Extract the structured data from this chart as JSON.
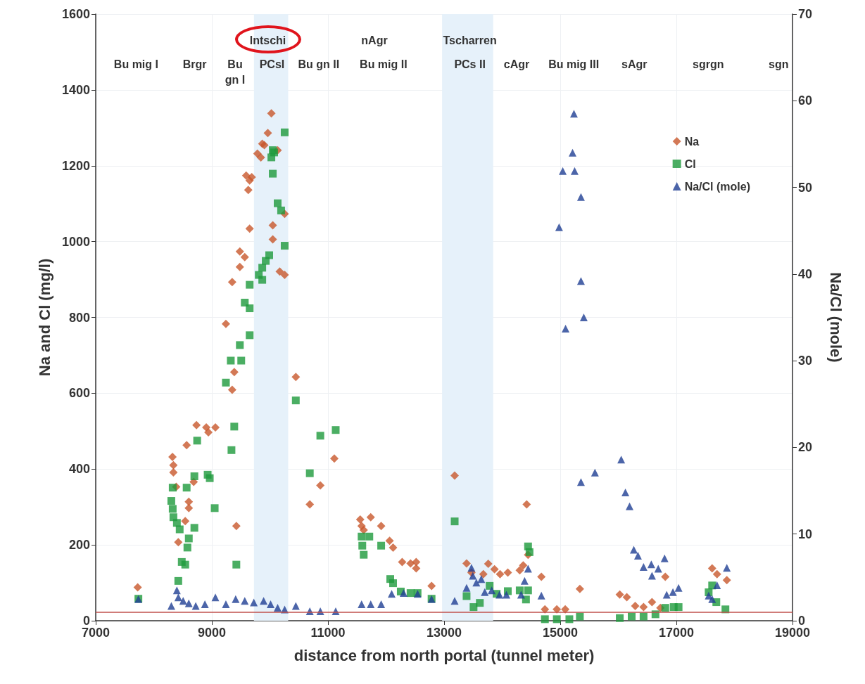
{
  "chart_data": {
    "type": "scatter",
    "xlabel": "distance from north portal (tunnel meter)",
    "ylabel": "Na and Cl (mg/l)",
    "y2label": "Na/Cl (mole)",
    "xlim": [
      7000,
      19000
    ],
    "xticks": [
      7000,
      9000,
      11000,
      13000,
      15000,
      17000,
      19000
    ],
    "ylim": [
      0,
      1600
    ],
    "yticks": [
      0,
      200,
      400,
      600,
      800,
      1000,
      1200,
      1400,
      1600
    ],
    "y2lim": [
      0,
      70
    ],
    "y2ticks": [
      0,
      10,
      20,
      30,
      40,
      50,
      60,
      70
    ],
    "grid": true,
    "legend": "top right",
    "series": [
      {
        "name": "Na",
        "color": "#c8572c",
        "marker": "diamond",
        "x": [
          7723,
          8322,
          8338,
          8338,
          8386,
          8566,
          8735,
          8904,
          8940,
          9061,
          8603,
          8603,
          8542,
          8422,
          8687,
          9242,
          9386,
          9350,
          9422,
          10446,
          10687,
          10868,
          11109,
          11555,
          11579,
          11615,
          11736,
          11916,
          12061,
          12121,
          12278,
          12422,
          12519,
          12519,
          12784,
          10025,
          9964,
          9868,
          9904,
          10133,
          9784,
          9844,
          9591,
          9687,
          9651,
          9627,
          9651,
          10049,
          10049,
          10254,
          9482,
          9567,
          9482,
          9350,
          10169,
          10254,
          13182,
          14422,
          13387,
          13471,
          13676,
          13760,
          13868,
          13964,
          14097,
          14302,
          14362,
          14446,
          14675,
          15338,
          14736,
          14941,
          15086,
          16025,
          16146,
          16291,
          16435,
          16580,
          16724,
          16809,
          17616,
          17700,
          17869
        ],
        "values": [
          88,
          432,
          410,
          391,
          353,
          463,
          516,
          510,
          497,
          510,
          314,
          297,
          263,
          207,
          366,
          783,
          656,
          609,
          250,
          643,
          307,
          357,
          428,
          267,
          250,
          239,
          273,
          250,
          211,
          193,
          155,
          151,
          155,
          138,
          92,
          1338,
          1286,
          1258,
          1254,
          1241,
          1232,
          1222,
          1174,
          1170,
          1161,
          1136,
          1034,
          1043,
          1006,
          1073,
          974,
          959,
          933,
          893,
          921,
          912,
          383,
          307,
          151,
          127,
          123,
          150,
          136,
          123,
          127,
          133,
          146,
          174,
          116,
          84,
          30,
          30,
          30,
          69,
          62,
          39,
          36,
          49,
          34,
          116,
          138,
          123,
          107
        ]
      },
      {
        "name": "Cl",
        "color": "#1e9a3c",
        "marker": "square",
        "x": [
          10254,
          10049,
          10025,
          10073,
          10049,
          10133,
          10193,
          10254,
          9988,
          9928,
          9868,
          9808,
          9868,
          9651,
          9567,
          9651,
          9651,
          9482,
          9326,
          9506,
          9242,
          9386,
          9338,
          9422,
          10446,
          10868,
          11133,
          10687,
          8747,
          8699,
          8928,
          8964,
          8326,
          8566,
          8302,
          8326,
          8338,
          8398,
          8446,
          8699,
          8603,
          8579,
          9049,
          8482,
          8542,
          8422,
          7735,
          11579,
          11591,
          11615,
          11712,
          11916,
          12073,
          12121,
          12254,
          12422,
          12543,
          12784,
          13182,
          14446,
          14471,
          13387,
          13507,
          13615,
          13784,
          13904,
          14097,
          14302,
          14446,
          14410,
          14736,
          14941,
          15157,
          15338,
          16025,
          16230,
          16435,
          16640,
          16809,
          16954,
          17038,
          17556,
          17616,
          17688,
          17845
        ],
        "values": [
          1288,
          1241,
          1222,
          1235,
          1179,
          1101,
          1082,
          989,
          964,
          949,
          931,
          912,
          899,
          886,
          839,
          824,
          753,
          727,
          686,
          686,
          628,
          512,
          450,
          148,
          581,
          488,
          503,
          389,
          475,
          381,
          385,
          376,
          351,
          351,
          316,
          295,
          273,
          258,
          241,
          245,
          217,
          193,
          297,
          155,
          148,
          105,
          58,
          222,
          198,
          174,
          222,
          198,
          110,
          99,
          77,
          73,
          73,
          58,
          262,
          196,
          181,
          65,
          36,
          47,
          92,
          71,
          78,
          80,
          80,
          56,
          4,
          4,
          4,
          11,
          7,
          11,
          11,
          17,
          34,
          36,
          36,
          75,
          93,
          49,
          30
        ]
      },
      {
        "name": "Na/Cl (mole)",
        "color": "#1f3f94",
        "marker": "triangle",
        "axis": "y2",
        "x": [
          7735,
          8302,
          8398,
          8422,
          8506,
          8603,
          8723,
          8880,
          9061,
          9242,
          9410,
          9567,
          9723,
          9892,
          10012,
          10133,
          10254,
          10446,
          10687,
          10868,
          11133,
          11579,
          11736,
          11916,
          12097,
          12302,
          12543,
          12784,
          13182,
          13387,
          13471,
          13495,
          13555,
          13640,
          13700,
          13820,
          13953,
          14073,
          14326,
          14386,
          14446,
          14675,
          14980,
          15043,
          15092,
          15212,
          15236,
          15248,
          15357,
          15357,
          15405,
          15357,
          15598,
          16050,
          16122,
          16194,
          16267,
          16339,
          16435,
          16568,
          16580,
          16688,
          16797,
          16833,
          16941,
          17038,
          17556,
          17616,
          17700,
          17869
        ],
        "values": [
          2.5,
          1.7,
          3.5,
          2.7,
          2.3,
          2.0,
          1.7,
          1.9,
          2.7,
          1.9,
          2.5,
          2.3,
          2.1,
          2.3,
          1.9,
          1.5,
          1.3,
          1.7,
          1.1,
          1.1,
          1.1,
          1.9,
          1.9,
          1.9,
          3.1,
          3.2,
          3.1,
          2.5,
          2.3,
          3.8,
          6.1,
          5.2,
          4.4,
          4.8,
          3.3,
          3.5,
          3.0,
          3.0,
          3.0,
          4.6,
          6.0,
          2.9,
          45.4,
          51.9,
          33.7,
          54.0,
          58.5,
          51.9,
          48.9,
          39.2,
          35,
          16.0,
          17.1,
          18.6,
          14.8,
          13.2,
          8.2,
          7.5,
          6.2,
          6.5,
          5.2,
          6.0,
          7.2,
          3.0,
          3.3,
          3.8,
          2.9,
          2.5,
          4.1,
          6.1
        ]
      }
    ],
    "ref_lines": [
      {
        "axis": "y2",
        "value": 1,
        "color": "#c0504d",
        "line_style": "solid"
      }
    ],
    "bands": [
      {
        "axis": "x",
        "from": 9725,
        "to": 10315,
        "color": "#e6f1fa"
      },
      {
        "axis": "x",
        "from": 12965,
        "to": 13845,
        "color": "#e6f1fa"
      }
    ],
    "annotations": [
      "Intschi",
      "nAgr",
      "Tscharren",
      "Bu mig I",
      "Brgr",
      "Bu\ngn I",
      "PCsI",
      "Bu gn II",
      "Bu mig II",
      "PCs II",
      "cAgr",
      "Bu mig III",
      "sAgr",
      "sgrgn",
      "sgn"
    ]
  }
}
